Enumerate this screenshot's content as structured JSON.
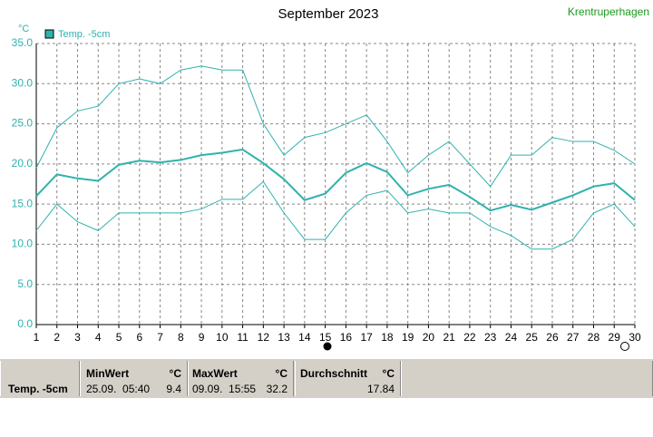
{
  "chart_data": {
    "type": "line",
    "title": "September 2023",
    "station": "Krentruperhagen",
    "y_unit": "°C",
    "x": [
      1,
      2,
      3,
      4,
      5,
      6,
      7,
      8,
      9,
      10,
      11,
      12,
      13,
      14,
      15,
      16,
      17,
      18,
      19,
      20,
      21,
      22,
      23,
      24,
      25,
      26,
      27,
      28,
      29,
      30
    ],
    "xlim": [
      1,
      30
    ],
    "xticks": [
      1,
      2,
      3,
      4,
      5,
      6,
      7,
      8,
      9,
      10,
      11,
      12,
      13,
      14,
      15,
      16,
      17,
      18,
      19,
      20,
      21,
      22,
      23,
      24,
      25,
      26,
      27,
      28,
      29,
      30
    ],
    "ylim": [
      0,
      35
    ],
    "yticks": [
      {
        "value": 0,
        "label": "0.0"
      },
      {
        "value": 5,
        "label": "5.0"
      },
      {
        "value": 10,
        "label": "10.0"
      },
      {
        "value": 15,
        "label": "15.0"
      },
      {
        "value": 20,
        "label": "20.0"
      },
      {
        "value": 25,
        "label": "25.0"
      },
      {
        "value": 30,
        "label": "30.0"
      },
      {
        "value": 35,
        "label": "35.0"
      }
    ],
    "grid": true,
    "series": [
      {
        "name": "Temp. -5cm",
        "color": "#2fb2ae",
        "values": [
          16.0,
          18.7,
          18.2,
          17.9,
          19.9,
          20.4,
          20.2,
          20.5,
          21.1,
          21.4,
          21.8,
          20.1,
          18.1,
          15.5,
          16.3,
          18.9,
          20.1,
          19.0,
          16.1,
          16.9,
          17.4,
          15.9,
          14.2,
          14.9,
          14.3,
          15.2,
          16.1,
          17.2,
          17.6,
          15.5
        ],
        "max": [
          19.5,
          24.5,
          26.6,
          27.2,
          30.0,
          30.6,
          30.0,
          31.7,
          32.2,
          31.7,
          31.7,
          25.0,
          21.1,
          23.3,
          23.9,
          25.0,
          26.1,
          22.8,
          18.9,
          21.1,
          22.8,
          20.0,
          17.2,
          21.1,
          21.1,
          23.3,
          22.8,
          22.8,
          21.7,
          20.0
        ],
        "min": [
          11.7,
          15.0,
          12.8,
          11.7,
          13.9,
          13.9,
          13.9,
          13.9,
          14.4,
          15.6,
          15.6,
          17.8,
          13.9,
          10.6,
          10.6,
          13.9,
          16.1,
          16.7,
          13.9,
          14.4,
          13.9,
          13.9,
          12.2,
          11.1,
          9.4,
          9.4,
          10.6,
          13.9,
          15.0,
          12.2
        ]
      }
    ]
  },
  "table": {
    "label": "Temp. -5cm",
    "min": {
      "title": "MinWert",
      "unit": "°C",
      "time": "25.09.  05:40",
      "value": "9.4"
    },
    "max": {
      "title": "MaxWert",
      "unit": "°C",
      "time": "09.09.  15:55",
      "value": "32.2"
    },
    "avg": {
      "title": "Durchschnitt",
      "unit": "°C",
      "value": "17.84"
    }
  }
}
